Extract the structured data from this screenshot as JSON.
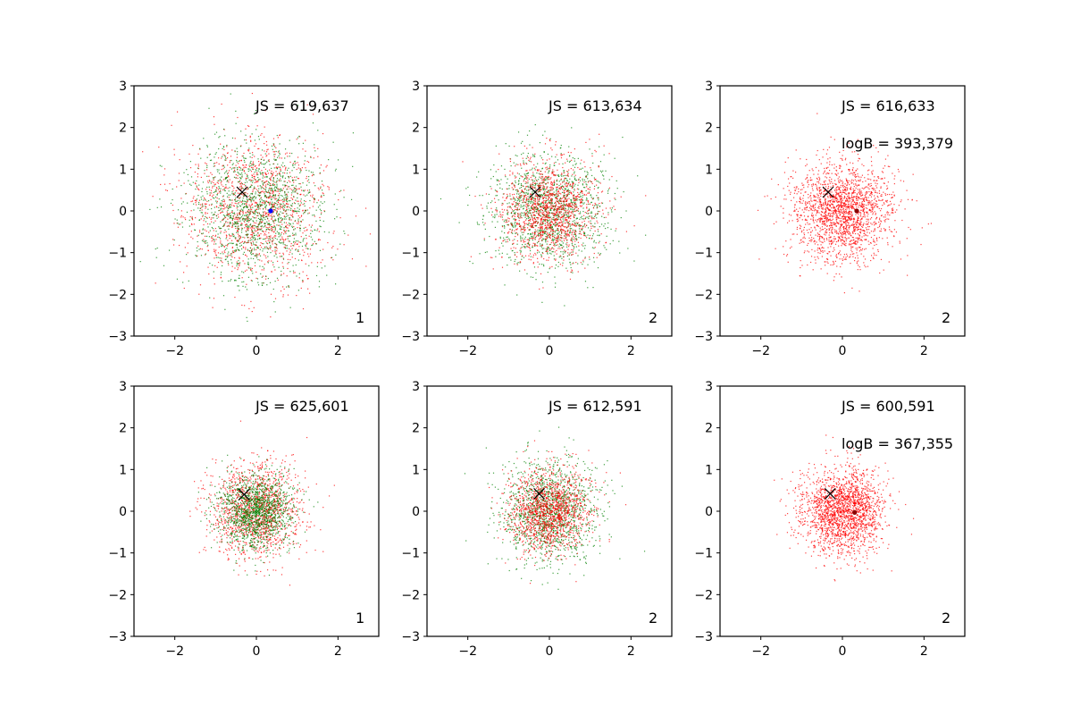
{
  "colors": {
    "series_a": "#ff0000",
    "series_b": "#008000",
    "marker": "#000000",
    "center_a": "#0000ff",
    "center_b": "#8b0000"
  },
  "chart_data": [
    {
      "type": "scatter",
      "panel": "row1-col1",
      "xlim": [
        -3,
        3
      ],
      "ylim": [
        -3,
        3
      ],
      "xticks": [
        "−2",
        "0",
        "2"
      ],
      "yticks": [
        "−3",
        "−2",
        "−1",
        "0",
        "1",
        "2",
        "3"
      ],
      "xtick_values": [
        -2,
        0,
        2
      ],
      "ytick_values": [
        -3,
        -2,
        -1,
        0,
        1,
        2,
        3
      ],
      "series": [
        {
          "name": "red",
          "color": "#ff0000",
          "n": 1400,
          "sd": 0.85,
          "center": [
            0,
            0
          ]
        },
        {
          "name": "green",
          "color": "#008000",
          "n": 1400,
          "sd": 0.85,
          "center": [
            0,
            0
          ]
        }
      ],
      "marker_x": {
        "x": -0.35,
        "y": 0.45
      },
      "center_point": {
        "x": 0.35,
        "y": 0.0,
        "color": "#0000ff"
      },
      "annotations": {
        "js": "JS = 619,637",
        "logb": "",
        "corner": "1"
      }
    },
    {
      "type": "scatter",
      "panel": "row1-col2",
      "xlim": [
        -3,
        3
      ],
      "ylim": [
        -3,
        3
      ],
      "xticks": [
        "−2",
        "0",
        "2"
      ],
      "yticks": [
        "−3",
        "−2",
        "−1",
        "0",
        "1",
        "2",
        "3"
      ],
      "xtick_values": [
        -2,
        0,
        2
      ],
      "ytick_values": [
        -3,
        -2,
        -1,
        0,
        1,
        2,
        3
      ],
      "series": [
        {
          "name": "green",
          "color": "#008000",
          "n": 1400,
          "sd": 0.7,
          "center": [
            0,
            0
          ]
        },
        {
          "name": "red",
          "color": "#ff0000",
          "n": 1400,
          "sd": 0.6,
          "center": [
            0,
            0
          ]
        }
      ],
      "marker_x": {
        "x": -0.35,
        "y": 0.45
      },
      "center_point": null,
      "annotations": {
        "js": "JS = 613,634",
        "logb": "",
        "corner": "2"
      }
    },
    {
      "type": "scatter",
      "panel": "row1-col3",
      "xlim": [
        -3,
        3
      ],
      "ylim": [
        -3,
        3
      ],
      "xticks": [
        "−2",
        "0",
        "2"
      ],
      "yticks": [
        "−3",
        "−2",
        "−1",
        "0",
        "1",
        "2",
        "3"
      ],
      "xtick_values": [
        -2,
        0,
        2
      ],
      "ytick_values": [
        -3,
        -2,
        -1,
        0,
        1,
        2,
        3
      ],
      "series": [
        {
          "name": "red",
          "color": "#ff0000",
          "n": 2000,
          "sd": 0.6,
          "center": [
            0,
            0
          ]
        }
      ],
      "marker_x": {
        "x": -0.35,
        "y": 0.45
      },
      "center_point": {
        "x": 0.35,
        "y": 0.0,
        "color": "#8b0000"
      },
      "annotations": {
        "js": "JS = 616,633",
        "logb": "logB = 393,379",
        "corner": "2"
      }
    },
    {
      "type": "scatter",
      "panel": "row2-col1",
      "xlim": [
        -3,
        3
      ],
      "ylim": [
        -3,
        3
      ],
      "xticks": [
        "−2",
        "0",
        "2"
      ],
      "yticks": [
        "−3",
        "−2",
        "−1",
        "0",
        "1",
        "2",
        "3"
      ],
      "xtick_values": [
        -2,
        0,
        2
      ],
      "ytick_values": [
        -3,
        -2,
        -1,
        0,
        1,
        2,
        3
      ],
      "series": [
        {
          "name": "red",
          "color": "#ff0000",
          "n": 1400,
          "sd": 0.55,
          "center": [
            0,
            0
          ]
        },
        {
          "name": "green",
          "color": "#008000",
          "n": 1400,
          "sd": 0.45,
          "center": [
            0,
            0
          ]
        }
      ],
      "marker_x": {
        "x": -0.3,
        "y": 0.4
      },
      "center_point": null,
      "annotations": {
        "js": "JS = 625,601",
        "logb": "",
        "corner": "1"
      }
    },
    {
      "type": "scatter",
      "panel": "row2-col2",
      "xlim": [
        -3,
        3
      ],
      "ylim": [
        -3,
        3
      ],
      "xticks": [
        "−2",
        "0",
        "2"
      ],
      "yticks": [
        "−3",
        "−2",
        "−1",
        "0",
        "1",
        "2",
        "3"
      ],
      "xtick_values": [
        -2,
        0,
        2
      ],
      "ytick_values": [
        -3,
        -2,
        -1,
        0,
        1,
        2,
        3
      ],
      "series": [
        {
          "name": "green",
          "color": "#008000",
          "n": 1400,
          "sd": 0.6,
          "center": [
            0,
            0
          ]
        },
        {
          "name": "red",
          "color": "#ff0000",
          "n": 1400,
          "sd": 0.5,
          "center": [
            0,
            0
          ]
        }
      ],
      "marker_x": {
        "x": -0.25,
        "y": 0.42
      },
      "center_point": null,
      "annotations": {
        "js": "JS = 612,591",
        "logb": "",
        "corner": "2"
      }
    },
    {
      "type": "scatter",
      "panel": "row2-col3",
      "xlim": [
        -3,
        3
      ],
      "ylim": [
        -3,
        3
      ],
      "xticks": [
        "−2",
        "0",
        "2"
      ],
      "yticks": [
        "−3",
        "−2",
        "−1",
        "0",
        "1",
        "2",
        "3"
      ],
      "xtick_values": [
        -2,
        0,
        2
      ],
      "ytick_values": [
        -3,
        -2,
        -1,
        0,
        1,
        2,
        3
      ],
      "series": [
        {
          "name": "red",
          "color": "#ff0000",
          "n": 2000,
          "sd": 0.5,
          "center": [
            0,
            0
          ]
        }
      ],
      "marker_x": {
        "x": -0.3,
        "y": 0.42
      },
      "center_point": {
        "x": 0.3,
        "y": -0.03,
        "color": "#8b0000"
      },
      "annotations": {
        "js": "JS = 600,591",
        "logb": "logB = 367,355",
        "corner": "2"
      }
    }
  ]
}
